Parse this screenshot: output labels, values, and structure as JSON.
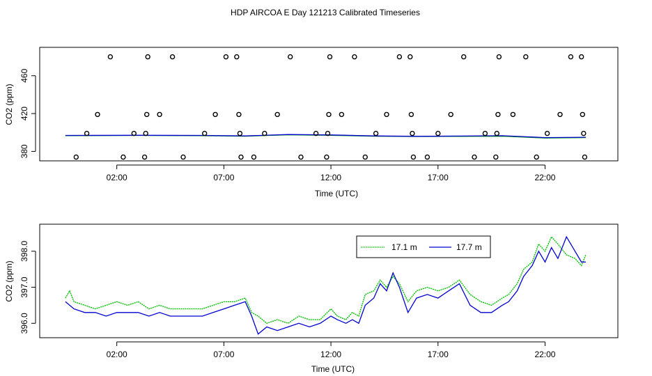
{
  "title": "HDP AIRCOA E  Day 121213  Calibrated Timeseries",
  "colors": {
    "series_17_1": "#00c000",
    "series_17_7": "#0000d0",
    "axis": "#000000"
  },
  "chart_data": [
    {
      "type": "scatter",
      "xlabel": "Time (UTC)",
      "ylabel": "CO2 (ppm)",
      "xlim": [
        -1.6,
        25.4
      ],
      "ylim": [
        370,
        490
      ],
      "x_ticks": [
        2,
        7,
        12,
        17,
        22
      ],
      "x_tick_labels": [
        "02:00",
        "07:00",
        "12:00",
        "17:00",
        "22:00"
      ],
      "y_ticks": [
        380,
        420,
        460
      ],
      "y_tick_labels": [
        "380",
        "420",
        "460"
      ],
      "legend": false,
      "grid": false,
      "points": [
        [
          0.1,
          374
        ],
        [
          0.6,
          399
        ],
        [
          1.1,
          419
        ],
        [
          1.7,
          480
        ],
        [
          2.3,
          374
        ],
        [
          2.8,
          399
        ],
        [
          3.3,
          374
        ],
        [
          3.35,
          399
        ],
        [
          3.4,
          419
        ],
        [
          3.45,
          480
        ],
        [
          4.0,
          419
        ],
        [
          4.6,
          480
        ],
        [
          5.1,
          374
        ],
        [
          6.1,
          399
        ],
        [
          6.6,
          419
        ],
        [
          7.1,
          480
        ],
        [
          7.6,
          480
        ],
        [
          7.7,
          419
        ],
        [
          7.75,
          399
        ],
        [
          7.8,
          374
        ],
        [
          8.4,
          374
        ],
        [
          8.9,
          399
        ],
        [
          9.5,
          419
        ],
        [
          10.1,
          480
        ],
        [
          10.6,
          374
        ],
        [
          11.3,
          399
        ],
        [
          11.8,
          374
        ],
        [
          11.85,
          399
        ],
        [
          11.9,
          419
        ],
        [
          11.95,
          480
        ],
        [
          12.5,
          419
        ],
        [
          13.1,
          480
        ],
        [
          13.6,
          374
        ],
        [
          14.1,
          399
        ],
        [
          14.6,
          419
        ],
        [
          15.2,
          480
        ],
        [
          15.7,
          480
        ],
        [
          15.75,
          419
        ],
        [
          15.8,
          399
        ],
        [
          15.85,
          374
        ],
        [
          16.5,
          374
        ],
        [
          17.0,
          399
        ],
        [
          17.6,
          419
        ],
        [
          18.2,
          480
        ],
        [
          18.7,
          374
        ],
        [
          19.2,
          399
        ],
        [
          19.7,
          374
        ],
        [
          19.75,
          399
        ],
        [
          19.8,
          419
        ],
        [
          19.85,
          480
        ],
        [
          20.5,
          419
        ],
        [
          21.1,
          480
        ],
        [
          21.6,
          374
        ],
        [
          22.1,
          399
        ],
        [
          22.7,
          419
        ],
        [
          23.2,
          480
        ],
        [
          23.7,
          480
        ],
        [
          23.75,
          419
        ],
        [
          23.8,
          399
        ],
        [
          23.85,
          374
        ]
      ],
      "lines": [
        {
          "values": [
            [
              -0.4,
              396.6
            ],
            [
              3,
              396.4
            ],
            [
              6,
              396.6
            ],
            [
              8,
              396.9
            ],
            [
              10,
              396.0
            ],
            [
              12,
              396.3
            ],
            [
              14,
              396.9
            ],
            [
              16,
              397.1
            ],
            [
              18,
              397.0
            ],
            [
              20,
              396.9
            ],
            [
              22,
              398.1
            ],
            [
              23.9,
              397.8
            ]
          ]
        },
        {
          "values": [
            [
              -0.4,
              396.4
            ],
            [
              3,
              396.3
            ],
            [
              6,
              396.4
            ],
            [
              8,
              396.7
            ],
            [
              10,
              395.8
            ],
            [
              12,
              396.1
            ],
            [
              14,
              396.7
            ],
            [
              16,
              397.0
            ],
            [
              18,
              396.8
            ],
            [
              20,
              396.6
            ],
            [
              22,
              397.8
            ],
            [
              23.9,
              397.6
            ]
          ]
        }
      ]
    },
    {
      "type": "line",
      "xlabel": "Time (UTC)",
      "ylabel": "CO2 (ppm)",
      "xlim": [
        -1.6,
        25.4
      ],
      "ylim": [
        395.6,
        398.75
      ],
      "x_ticks": [
        2,
        7,
        12,
        17,
        22
      ],
      "x_tick_labels": [
        "02:00",
        "07:00",
        "12:00",
        "17:00",
        "22:00"
      ],
      "y_ticks": [
        396.0,
        397.0,
        398.0
      ],
      "y_tick_labels": [
        "396.0",
        "397.0",
        "398.0"
      ],
      "grid": false,
      "legend": "top-right",
      "series": [
        {
          "name": "17.1 m",
          "color": "#00c000",
          "values": [
            [
              -0.4,
              396.7
            ],
            [
              -0.2,
              396.9
            ],
            [
              0,
              396.6
            ],
            [
              0.5,
              396.5
            ],
            [
              1,
              396.4
            ],
            [
              1.5,
              396.5
            ],
            [
              2,
              396.6
            ],
            [
              2.5,
              396.5
            ],
            [
              3,
              396.6
            ],
            [
              3.5,
              396.4
            ],
            [
              4,
              396.5
            ],
            [
              4.5,
              396.4
            ],
            [
              5,
              396.4
            ],
            [
              5.5,
              396.4
            ],
            [
              6,
              396.4
            ],
            [
              6.5,
              396.5
            ],
            [
              7,
              396.6
            ],
            [
              7.5,
              396.6
            ],
            [
              8,
              396.7
            ],
            [
              8.3,
              396.3
            ],
            [
              8.6,
              396.2
            ],
            [
              9,
              396.0
            ],
            [
              9.5,
              396.1
            ],
            [
              10,
              396.0
            ],
            [
              10.5,
              396.2
            ],
            [
              11,
              396.1
            ],
            [
              11.5,
              396.1
            ],
            [
              12,
              396.4
            ],
            [
              12.3,
              396.2
            ],
            [
              12.7,
              396.1
            ],
            [
              13,
              396.3
            ],
            [
              13.3,
              396.2
            ],
            [
              13.6,
              396.8
            ],
            [
              14,
              396.9
            ],
            [
              14.3,
              397.2
            ],
            [
              14.6,
              397.0
            ],
            [
              14.9,
              397.3
            ],
            [
              15.2,
              397.1
            ],
            [
              15.6,
              396.6
            ],
            [
              16,
              396.9
            ],
            [
              16.5,
              397.0
            ],
            [
              17,
              396.9
            ],
            [
              17.5,
              397.0
            ],
            [
              18,
              397.2
            ],
            [
              18.5,
              396.8
            ],
            [
              19,
              396.6
            ],
            [
              19.5,
              396.5
            ],
            [
              20,
              396.7
            ],
            [
              20.3,
              396.8
            ],
            [
              20.7,
              397.1
            ],
            [
              21,
              397.5
            ],
            [
              21.4,
              397.7
            ],
            [
              21.7,
              398.2
            ],
            [
              22,
              398.0
            ],
            [
              22.3,
              398.4
            ],
            [
              22.6,
              398.2
            ],
            [
              23,
              397.9
            ],
            [
              23.4,
              397.8
            ],
            [
              23.7,
              397.6
            ],
            [
              23.9,
              397.9
            ]
          ]
        },
        {
          "name": "17.7 m",
          "color": "#0000d0",
          "values": [
            [
              -0.4,
              396.6
            ],
            [
              -0.2,
              396.5
            ],
            [
              0,
              396.4
            ],
            [
              0.5,
              396.3
            ],
            [
              1,
              396.3
            ],
            [
              1.5,
              396.2
            ],
            [
              2,
              396.3
            ],
            [
              2.5,
              396.3
            ],
            [
              3,
              396.3
            ],
            [
              3.5,
              396.2
            ],
            [
              4,
              396.3
            ],
            [
              4.5,
              396.2
            ],
            [
              5,
              396.2
            ],
            [
              5.5,
              396.2
            ],
            [
              6,
              396.2
            ],
            [
              6.5,
              396.3
            ],
            [
              7,
              396.4
            ],
            [
              7.5,
              396.5
            ],
            [
              8,
              396.6
            ],
            [
              8.3,
              396.2
            ],
            [
              8.6,
              395.7
            ],
            [
              9,
              395.9
            ],
            [
              9.5,
              395.8
            ],
            [
              10,
              395.9
            ],
            [
              10.5,
              396.0
            ],
            [
              11,
              395.9
            ],
            [
              11.5,
              396.0
            ],
            [
              12,
              396.2
            ],
            [
              12.3,
              396.1
            ],
            [
              12.7,
              396.0
            ],
            [
              13,
              396.1
            ],
            [
              13.3,
              396.0
            ],
            [
              13.6,
              396.5
            ],
            [
              14,
              396.7
            ],
            [
              14.3,
              397.1
            ],
            [
              14.6,
              396.9
            ],
            [
              14.9,
              397.4
            ],
            [
              15.2,
              397.0
            ],
            [
              15.6,
              396.3
            ],
            [
              16,
              396.7
            ],
            [
              16.5,
              396.8
            ],
            [
              17,
              396.7
            ],
            [
              17.5,
              396.9
            ],
            [
              18,
              397.1
            ],
            [
              18.5,
              396.5
            ],
            [
              19,
              396.3
            ],
            [
              19.5,
              396.3
            ],
            [
              20,
              396.5
            ],
            [
              20.3,
              396.6
            ],
            [
              20.7,
              396.9
            ],
            [
              21,
              397.3
            ],
            [
              21.4,
              397.6
            ],
            [
              21.7,
              398.0
            ],
            [
              22,
              397.7
            ],
            [
              22.3,
              398.1
            ],
            [
              22.6,
              397.8
            ],
            [
              23,
              398.4
            ],
            [
              23.4,
              398.0
            ],
            [
              23.7,
              397.7
            ],
            [
              23.9,
              397.7
            ]
          ]
        }
      ]
    }
  ]
}
